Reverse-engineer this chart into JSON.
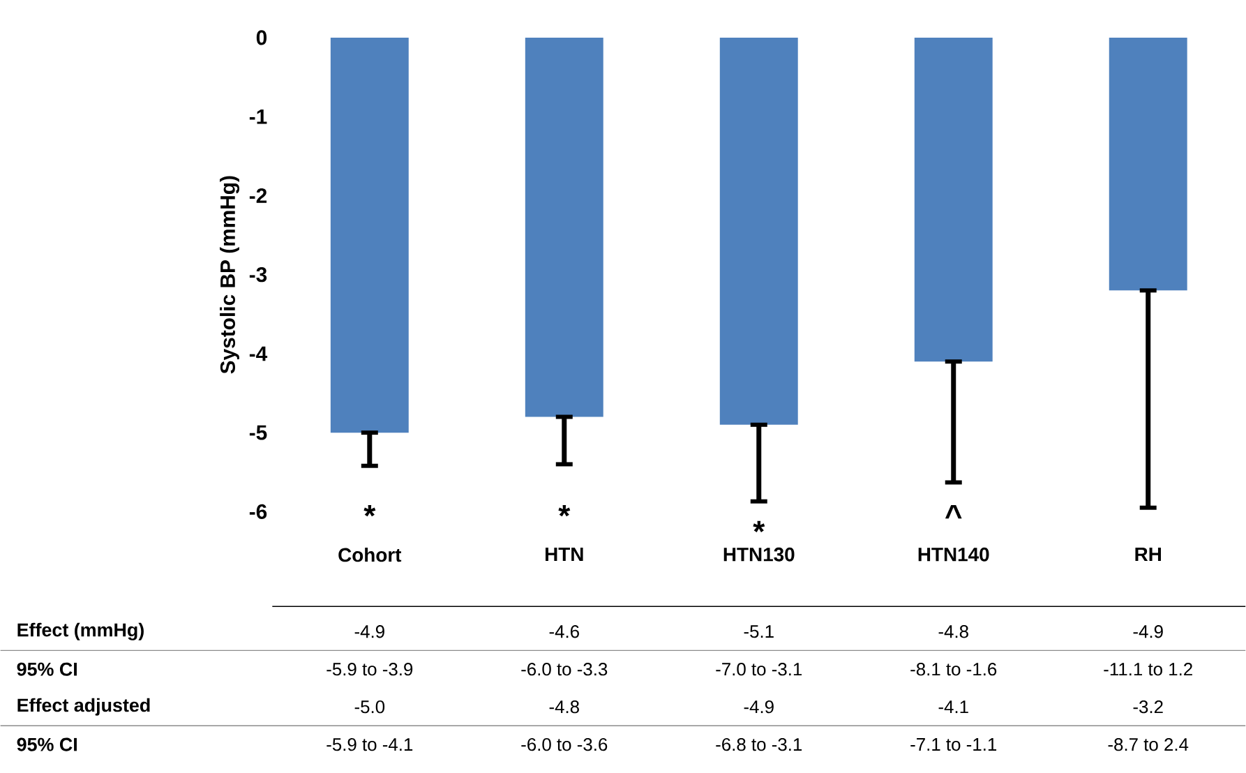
{
  "chart_data": {
    "type": "bar",
    "ylabel": "Systolic BP (mmHg)",
    "categories": [
      "Cohort",
      "HTN",
      "HTN130",
      "HTN140",
      "RH"
    ],
    "values": [
      -5.0,
      -4.8,
      -4.9,
      -4.1,
      -3.2
    ],
    "errors": [
      [
        -5.42,
        -5.0
      ],
      [
        -5.4,
        -4.8
      ],
      [
        -5.87,
        -4.9
      ],
      [
        -5.63,
        -4.1
      ],
      [
        -5.95,
        -3.2
      ]
    ],
    "color": "#4f81bd",
    "ylim": [
      -6,
      0
    ],
    "yticks": [
      0,
      -1,
      -2,
      -3,
      -4,
      -5,
      -6
    ],
    "annotations": [
      "Effect (mmHg)",
      "-4.9",
      "-4.6",
      "-5.1",
      "-4.8",
      "-4.9",
      "95% CI",
      "-5.9 to -3.9",
      "-6.0 to -3.3",
      "-7.0 to -3.1",
      "-8.1 to -1.6",
      "-11.1 to 1.2",
      "Effect adjusted",
      "-5.0",
      "-4.8",
      "-4.9",
      "-4.1",
      "-3.2",
      "95% CI",
      "-5.9 to -4.1",
      "-6.0 to -3.6",
      "-6.8 to -3.1",
      "-7.1 to -1.1",
      "-8.7 to 2.4",
      "*",
      "*",
      "*",
      "^"
    ]
  }
}
